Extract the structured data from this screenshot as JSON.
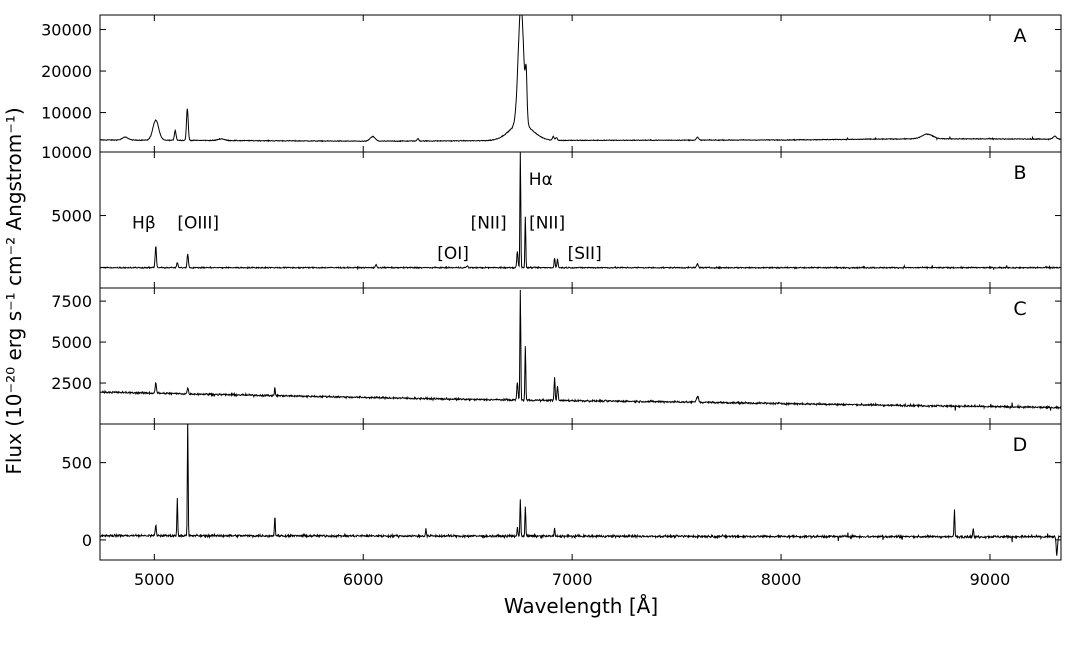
{
  "chart_data": {
    "type": "line",
    "xlabel": "Wavelength [Å]",
    "ylabel": "Flux (10⁻²⁰ erg s⁻¹ cm⁻² Angstrom⁻¹)",
    "xlim": [
      4740,
      9340
    ],
    "xticks": [
      5000,
      6000,
      7000,
      8000,
      9000
    ],
    "color": "#000000",
    "panels": [
      {
        "label": "A",
        "ylim": [
          500,
          33500
        ],
        "yticks": [
          10000,
          20000,
          30000
        ],
        "baseline": [
          [
            4740,
            3400
          ],
          [
            5200,
            3300
          ],
          [
            6000,
            3100
          ],
          [
            7000,
            3300
          ],
          [
            8000,
            3400
          ],
          [
            8700,
            3700
          ],
          [
            9340,
            3600
          ]
        ],
        "noise": 90,
        "features": [
          {
            "x": 5007,
            "a": 4800,
            "w": 14
          },
          {
            "x": 4861,
            "a": 700,
            "w": 14
          },
          {
            "x": 5100,
            "a": 2400,
            "w": 4
          },
          {
            "x": 5158,
            "a": 7700,
            "w": 4
          },
          {
            "x": 5320,
            "a": 400,
            "w": 15
          },
          {
            "x": 6045,
            "a": 1100,
            "w": 12
          },
          {
            "x": 6262,
            "a": 600,
            "w": 4
          },
          {
            "x": 6755,
            "a": 28600,
            "w": 13
          },
          {
            "x": 6755,
            "a": 4000,
            "w": 55
          },
          {
            "x": 6780,
            "a": 10000,
            "w": 4
          },
          {
            "x": 6910,
            "a": 900,
            "w": 4
          },
          {
            "x": 6925,
            "a": 700,
            "w": 4
          },
          {
            "x": 7600,
            "a": 700,
            "w": 5
          },
          {
            "x": 8700,
            "a": 1100,
            "w": 25
          },
          {
            "x": 9310,
            "a": 700,
            "w": 8
          }
        ]
      },
      {
        "label": "B",
        "ylim": [
          -700,
          10000
        ],
        "yticks": [
          5000,
          10000
        ],
        "baseline": [
          [
            4740,
            900
          ],
          [
            7000,
            900
          ],
          [
            9340,
            900
          ]
        ],
        "noise": 45,
        "features": [
          {
            "x": 5007,
            "a": 1700,
            "w": 3
          },
          {
            "x": 5110,
            "a": 400,
            "w": 3
          },
          {
            "x": 5160,
            "a": 1100,
            "w": 3
          },
          {
            "x": 6062,
            "a": 250,
            "w": 3
          },
          {
            "x": 6498,
            "a": 150,
            "w": 3
          },
          {
            "x": 6738,
            "a": 1300,
            "w": 3
          },
          {
            "x": 6752,
            "a": 9100,
            "w": 2
          },
          {
            "x": 6776,
            "a": 4000,
            "w": 2
          },
          {
            "x": 6916,
            "a": 800,
            "w": 2.5
          },
          {
            "x": 6930,
            "a": 700,
            "w": 2.5
          },
          {
            "x": 7600,
            "a": 300,
            "w": 4
          }
        ],
        "annotations": [
          {
            "text": "Hβ",
            "x": 4950,
            "y": 4000
          },
          {
            "text": "[OIII]",
            "x": 5210,
            "y": 4000
          },
          {
            "text": "[NII]",
            "x": 6600,
            "y": 4000
          },
          {
            "text": "[NII]",
            "x": 6880,
            "y": 4000
          },
          {
            "text": "Hα",
            "x": 6850,
            "y": 7400
          },
          {
            "text": "[OI]",
            "x": 6430,
            "y": 1600
          },
          {
            "text": "[SII]",
            "x": 7060,
            "y": 1600
          }
        ]
      },
      {
        "label": "C",
        "ylim": [
          0,
          8300
        ],
        "yticks": [
          2500,
          5000,
          7500
        ],
        "baseline": [
          [
            4740,
            1950
          ],
          [
            5500,
            1750
          ],
          [
            6500,
            1500
          ],
          [
            7500,
            1350
          ],
          [
            8500,
            1150
          ],
          [
            9340,
            1000
          ]
        ],
        "noise": 55,
        "features": [
          {
            "x": 5007,
            "a": 650,
            "w": 3
          },
          {
            "x": 5160,
            "a": 350,
            "w": 3
          },
          {
            "x": 5577,
            "a": 500,
            "w": 2
          },
          {
            "x": 6738,
            "a": 1050,
            "w": 3
          },
          {
            "x": 6752,
            "a": 6700,
            "w": 2
          },
          {
            "x": 6776,
            "a": 3300,
            "w": 2
          },
          {
            "x": 6916,
            "a": 1400,
            "w": 2.5
          },
          {
            "x": 6930,
            "a": 900,
            "w": 2.5
          },
          {
            "x": 7600,
            "a": 350,
            "w": 5
          }
        ]
      },
      {
        "label": "D",
        "ylim": [
          -130,
          750
        ],
        "yticks": [
          0,
          500
        ],
        "baseline": [
          [
            4740,
            28
          ],
          [
            9340,
            20
          ]
        ],
        "noise": 7,
        "features": [
          {
            "x": 5007,
            "a": 70,
            "w": 2.5
          },
          {
            "x": 5110,
            "a": 240,
            "w": 2
          },
          {
            "x": 5160,
            "a": 760,
            "w": 1.8
          },
          {
            "x": 5577,
            "a": 130,
            "w": 2
          },
          {
            "x": 6300,
            "a": 50,
            "w": 2
          },
          {
            "x": 6738,
            "a": 60,
            "w": 2
          },
          {
            "x": 6752,
            "a": 240,
            "w": 2
          },
          {
            "x": 6776,
            "a": 190,
            "w": 2
          },
          {
            "x": 6916,
            "a": 50,
            "w": 2
          },
          {
            "x": 8830,
            "a": 170,
            "w": 2
          },
          {
            "x": 8920,
            "a": 50,
            "w": 2
          },
          {
            "x": 9320,
            "a": -120,
            "w": 3
          }
        ]
      }
    ]
  }
}
